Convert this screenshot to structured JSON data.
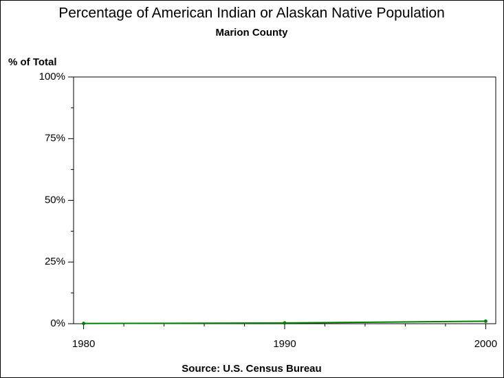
{
  "chart_data": {
    "type": "line",
    "title": "Percentage of American Indian or Alaskan Native Population",
    "subtitle": "Marion County",
    "y_label": "% of Total",
    "source": "Source: U.S. Census Bureau",
    "x": [
      1980,
      1990,
      2000
    ],
    "series": [
      {
        "name": "Marion County",
        "color": "#008000",
        "values": [
          0.1,
          0.3,
          1.0
        ]
      }
    ],
    "xlim": [
      1979.5,
      2000.5
    ],
    "xticks": [
      1980,
      1990,
      2000
    ],
    "x_minor_ticks": [
      1982,
      1984,
      1986,
      1988,
      1992,
      1994,
      1996,
      1998
    ],
    "ylim": [
      0,
      100
    ],
    "yticks": [
      {
        "value": 0,
        "label": "0%"
      },
      {
        "value": 25,
        "label": "25%"
      },
      {
        "value": 50,
        "label": "50%"
      },
      {
        "value": 75,
        "label": "75%"
      },
      {
        "value": 100,
        "label": "100%"
      }
    ],
    "y_minor_ticks": [
      12.5,
      37.5,
      62.5,
      87.5
    ]
  }
}
